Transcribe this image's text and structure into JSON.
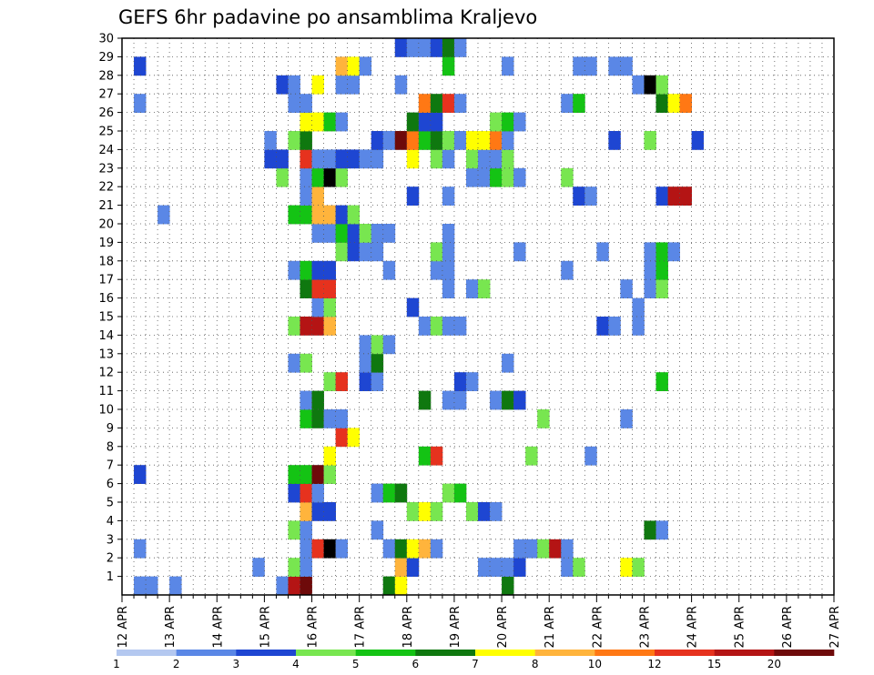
{
  "chart_data": {
    "type": "heatmap",
    "title": "GEFS 6hr padavine po ansamblima Kraljevo",
    "x_tick_labels": [
      "12 APR",
      "13 APR",
      "14 APR",
      "15 APR",
      "16 APR",
      "17 APR",
      "18 APR",
      "19 APR",
      "20 APR",
      "21 APR",
      "22 APR",
      "23 APR",
      "24 APR",
      "25 APR",
      "26 APR",
      "27 APR"
    ],
    "x_step_hours": 6,
    "y_tick_labels": [
      "1",
      "2",
      "3",
      "4",
      "5",
      "6",
      "7",
      "8",
      "9",
      "10",
      "11",
      "12",
      "13",
      "14",
      "15",
      "16",
      "17",
      "18",
      "19",
      "20",
      "21",
      "22",
      "23",
      "24",
      "25",
      "26",
      "27",
      "28",
      "29",
      "30"
    ],
    "y_range": [
      0,
      30
    ],
    "grid": true,
    "colorbar": {
      "labels": [
        "1",
        "2",
        "3",
        "4",
        "5",
        "6",
        "7",
        "8",
        "10",
        "12",
        "15",
        "20"
      ],
      "colors": [
        "#b4c8f0",
        "#5a87e6",
        "#1e46d2",
        "#78e650",
        "#14c314",
        "#0f780f",
        "#ffff00",
        "#ffb43c",
        "#ff7814",
        "#e6321e",
        "#b41414",
        "#6e0a0a"
      ]
    },
    "cells": [
      [
        1,
        0,
        1
      ],
      [
        2,
        0,
        1
      ],
      [
        4,
        0,
        1
      ],
      [
        13,
        0,
        1
      ],
      [
        14,
        0,
        10
      ],
      [
        15,
        0,
        11
      ],
      [
        22,
        0,
        5
      ],
      [
        23,
        0,
        6
      ],
      [
        32,
        0,
        5
      ],
      [
        11,
        1,
        1
      ],
      [
        14,
        1,
        3
      ],
      [
        15,
        1,
        1
      ],
      [
        23,
        1,
        7
      ],
      [
        24,
        1,
        2
      ],
      [
        30,
        1,
        1
      ],
      [
        31,
        1,
        1
      ],
      [
        32,
        1,
        1
      ],
      [
        33,
        1,
        2
      ],
      [
        37,
        1,
        1
      ],
      [
        38,
        1,
        3
      ],
      [
        42,
        1,
        6
      ],
      [
        43,
        1,
        3
      ],
      [
        1,
        2,
        1
      ],
      [
        15,
        2,
        1
      ],
      [
        16,
        2,
        9
      ],
      [
        17,
        2,
        12
      ],
      [
        18,
        2,
        1
      ],
      [
        22,
        2,
        1
      ],
      [
        23,
        2,
        5
      ],
      [
        24,
        2,
        6
      ],
      [
        25,
        2,
        7
      ],
      [
        26,
        2,
        1
      ],
      [
        33,
        2,
        1
      ],
      [
        34,
        2,
        1
      ],
      [
        35,
        2,
        3
      ],
      [
        36,
        2,
        10
      ],
      [
        37,
        2,
        1
      ],
      [
        14,
        3,
        3
      ],
      [
        15,
        3,
        1
      ],
      [
        21,
        3,
        1
      ],
      [
        44,
        3,
        5
      ],
      [
        45,
        3,
        1
      ],
      [
        15,
        4,
        7
      ],
      [
        16,
        4,
        2
      ],
      [
        17,
        4,
        2
      ],
      [
        24,
        4,
        3
      ],
      [
        25,
        4,
        6
      ],
      [
        26,
        4,
        3
      ],
      [
        29,
        4,
        3
      ],
      [
        30,
        4,
        2
      ],
      [
        31,
        4,
        1
      ],
      [
        14,
        5,
        2
      ],
      [
        15,
        5,
        9
      ],
      [
        16,
        5,
        1
      ],
      [
        21,
        5,
        1
      ],
      [
        22,
        5,
        4
      ],
      [
        23,
        5,
        5
      ],
      [
        27,
        5,
        3
      ],
      [
        28,
        5,
        4
      ],
      [
        1,
        6,
        2
      ],
      [
        14,
        6,
        4
      ],
      [
        15,
        6,
        4
      ],
      [
        16,
        6,
        11
      ],
      [
        17,
        6,
        3
      ],
      [
        17,
        7,
        6
      ],
      [
        25,
        7,
        4
      ],
      [
        26,
        7,
        9
      ],
      [
        34,
        7,
        3
      ],
      [
        39,
        7,
        1
      ],
      [
        18,
        8,
        9
      ],
      [
        19,
        8,
        6
      ],
      [
        15,
        9,
        4
      ],
      [
        16,
        9,
        5
      ],
      [
        17,
        9,
        1
      ],
      [
        18,
        9,
        1
      ],
      [
        35,
        9,
        3
      ],
      [
        42,
        9,
        1
      ],
      [
        15,
        10,
        1
      ],
      [
        16,
        10,
        5
      ],
      [
        25,
        10,
        5
      ],
      [
        27,
        10,
        1
      ],
      [
        28,
        10,
        1
      ],
      [
        31,
        10,
        1
      ],
      [
        32,
        10,
        5
      ],
      [
        33,
        10,
        2
      ],
      [
        17,
        11,
        3
      ],
      [
        18,
        11,
        9
      ],
      [
        20,
        11,
        2
      ],
      [
        21,
        11,
        1
      ],
      [
        28,
        11,
        2
      ],
      [
        29,
        11,
        1
      ],
      [
        45,
        11,
        4
      ],
      [
        14,
        12,
        1
      ],
      [
        15,
        12,
        3
      ],
      [
        20,
        12,
        1
      ],
      [
        21,
        12,
        5
      ],
      [
        32,
        12,
        1
      ],
      [
        20,
        13,
        1
      ],
      [
        21,
        13,
        3
      ],
      [
        22,
        13,
        1
      ],
      [
        14,
        14,
        3
      ],
      [
        15,
        14,
        10
      ],
      [
        16,
        14,
        10
      ],
      [
        17,
        14,
        7
      ],
      [
        25,
        14,
        1
      ],
      [
        26,
        14,
        3
      ],
      [
        27,
        14,
        1
      ],
      [
        28,
        14,
        1
      ],
      [
        40,
        14,
        2
      ],
      [
        41,
        14,
        1
      ],
      [
        43,
        14,
        1
      ],
      [
        16,
        15,
        1
      ],
      [
        17,
        15,
        3
      ],
      [
        24,
        15,
        2
      ],
      [
        43,
        15,
        1
      ],
      [
        15,
        16,
        5
      ],
      [
        16,
        16,
        9
      ],
      [
        17,
        16,
        9
      ],
      [
        27,
        16,
        1
      ],
      [
        29,
        16,
        1
      ],
      [
        30,
        16,
        3
      ],
      [
        42,
        16,
        1
      ],
      [
        44,
        16,
        1
      ],
      [
        45,
        16,
        3
      ],
      [
        14,
        17,
        1
      ],
      [
        15,
        17,
        4
      ],
      [
        16,
        17,
        2
      ],
      [
        17,
        17,
        2
      ],
      [
        22,
        17,
        1
      ],
      [
        26,
        17,
        1
      ],
      [
        27,
        17,
        1
      ],
      [
        37,
        17,
        1
      ],
      [
        44,
        17,
        1
      ],
      [
        45,
        17,
        4
      ],
      [
        18,
        18,
        3
      ],
      [
        19,
        18,
        2
      ],
      [
        20,
        18,
        1
      ],
      [
        21,
        18,
        1
      ],
      [
        26,
        18,
        3
      ],
      [
        27,
        18,
        1
      ],
      [
        33,
        18,
        1
      ],
      [
        40,
        18,
        1
      ],
      [
        44,
        18,
        1
      ],
      [
        45,
        18,
        4
      ],
      [
        46,
        18,
        1
      ],
      [
        16,
        19,
        1
      ],
      [
        17,
        19,
        1
      ],
      [
        18,
        19,
        4
      ],
      [
        19,
        19,
        2
      ],
      [
        20,
        19,
        3
      ],
      [
        21,
        19,
        1
      ],
      [
        22,
        19,
        1
      ],
      [
        27,
        19,
        1
      ],
      [
        3,
        20,
        1
      ],
      [
        14,
        20,
        4
      ],
      [
        15,
        20,
        4
      ],
      [
        16,
        20,
        7
      ],
      [
        17,
        20,
        7
      ],
      [
        18,
        20,
        2
      ],
      [
        19,
        20,
        3
      ],
      [
        15,
        21,
        1
      ],
      [
        16,
        21,
        7
      ],
      [
        24,
        21,
        2
      ],
      [
        27,
        21,
        1
      ],
      [
        38,
        21,
        2
      ],
      [
        39,
        21,
        1
      ],
      [
        45,
        21,
        2
      ],
      [
        46,
        21,
        10
      ],
      [
        47,
        21,
        10
      ],
      [
        13,
        22,
        3
      ],
      [
        15,
        22,
        1
      ],
      [
        16,
        22,
        4
      ],
      [
        17,
        22,
        12
      ],
      [
        18,
        22,
        3
      ],
      [
        29,
        22,
        1
      ],
      [
        30,
        22,
        1
      ],
      [
        31,
        22,
        4
      ],
      [
        32,
        22,
        3
      ],
      [
        33,
        22,
        1
      ],
      [
        37,
        22,
        3
      ],
      [
        12,
        23,
        2
      ],
      [
        13,
        23,
        2
      ],
      [
        15,
        23,
        9
      ],
      [
        16,
        23,
        1
      ],
      [
        17,
        23,
        1
      ],
      [
        18,
        23,
        2
      ],
      [
        19,
        23,
        2
      ],
      [
        20,
        23,
        1
      ],
      [
        21,
        23,
        1
      ],
      [
        24,
        23,
        6
      ],
      [
        26,
        23,
        3
      ],
      [
        27,
        23,
        1
      ],
      [
        29,
        23,
        3
      ],
      [
        30,
        23,
        1
      ],
      [
        31,
        23,
        1
      ],
      [
        32,
        23,
        3
      ],
      [
        12,
        24,
        1
      ],
      [
        14,
        24,
        3
      ],
      [
        15,
        24,
        5
      ],
      [
        21,
        24,
        2
      ],
      [
        22,
        24,
        1
      ],
      [
        23,
        24,
        11
      ],
      [
        24,
        24,
        8
      ],
      [
        25,
        24,
        4
      ],
      [
        26,
        24,
        5
      ],
      [
        27,
        24,
        3
      ],
      [
        28,
        24,
        1
      ],
      [
        29,
        24,
        6
      ],
      [
        30,
        24,
        6
      ],
      [
        31,
        24,
        8
      ],
      [
        32,
        24,
        1
      ],
      [
        41,
        24,
        2
      ],
      [
        44,
        24,
        3
      ],
      [
        48,
        24,
        2
      ],
      [
        15,
        25,
        6
      ],
      [
        16,
        25,
        6
      ],
      [
        17,
        25,
        4
      ],
      [
        18,
        25,
        1
      ],
      [
        24,
        25,
        5
      ],
      [
        25,
        25,
        2
      ],
      [
        26,
        25,
        2
      ],
      [
        31,
        25,
        3
      ],
      [
        32,
        25,
        4
      ],
      [
        33,
        25,
        1
      ],
      [
        1,
        26,
        1
      ],
      [
        14,
        26,
        1
      ],
      [
        15,
        26,
        1
      ],
      [
        25,
        26,
        8
      ],
      [
        26,
        26,
        5
      ],
      [
        27,
        26,
        9
      ],
      [
        28,
        26,
        1
      ],
      [
        37,
        26,
        1
      ],
      [
        38,
        26,
        4
      ],
      [
        45,
        26,
        5
      ],
      [
        46,
        26,
        6
      ],
      [
        47,
        26,
        8
      ],
      [
        13,
        27,
        2
      ],
      [
        14,
        27,
        1
      ],
      [
        16,
        27,
        6
      ],
      [
        18,
        27,
        1
      ],
      [
        19,
        27,
        1
      ],
      [
        23,
        27,
        1
      ],
      [
        43,
        27,
        1
      ],
      [
        44,
        27,
        12
      ],
      [
        45,
        27,
        3
      ],
      [
        1,
        28,
        2
      ],
      [
        18,
        28,
        7
      ],
      [
        19,
        28,
        6
      ],
      [
        20,
        28,
        1
      ],
      [
        27,
        28,
        4
      ],
      [
        32,
        28,
        1
      ],
      [
        38,
        28,
        1
      ],
      [
        39,
        28,
        1
      ],
      [
        41,
        28,
        1
      ],
      [
        42,
        28,
        1
      ],
      [
        23,
        29,
        2
      ],
      [
        24,
        29,
        1
      ],
      [
        25,
        29,
        1
      ],
      [
        26,
        29,
        2
      ],
      [
        27,
        29,
        5
      ],
      [
        28,
        29,
        1
      ]
    ]
  }
}
